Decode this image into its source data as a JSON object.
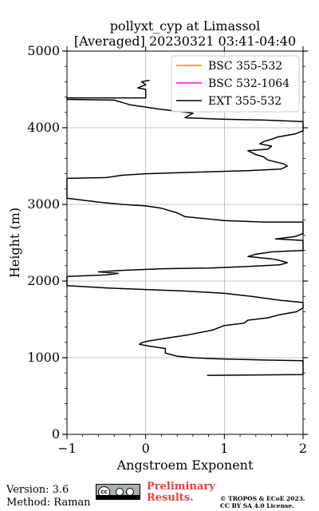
{
  "footer": {
    "version": "Version: 3.6",
    "method": "Method: Raman",
    "preliminary": [
      "Preliminary",
      "Results."
    ],
    "copyright": [
      "© TROPOS & ECoE 2023.",
      "CC BY SA 4.0 License."
    ]
  },
  "chart_data": {
    "type": "line",
    "title": [
      "pollyxt_cyp at Limassol",
      "[Averaged] 20230321 03:41-04:40"
    ],
    "xlabel": "Angstroem Exponent",
    "ylabel": "Height (m)",
    "xlim": [
      -1,
      2
    ],
    "ylim": [
      0,
      5000
    ],
    "x_ticks": [
      -1,
      0,
      1,
      2
    ],
    "y_ticks": [
      0,
      1000,
      2000,
      3000,
      4000,
      5000
    ],
    "x_tick_labels": [
      "−1",
      "0",
      "1",
      "2"
    ],
    "y_tick_labels": [
      "0",
      "1000",
      "2000",
      "3000",
      "4000",
      "5000"
    ],
    "grid": true,
    "legend_position": "top-right",
    "series": [
      {
        "name": "BSC 355-532",
        "color": "#ff7f0e",
        "points": []
      },
      {
        "name": "BSC 532-1064",
        "color": "#ff00ff",
        "points": []
      },
      {
        "name": "EXT 355-532",
        "color": "#000000",
        "points": [
          [
            0.78,
            770
          ],
          [
            2.0,
            780
          ],
          [
            2.0,
            960
          ],
          [
            1.5,
            970
          ],
          [
            0.9,
            985
          ],
          [
            0.6,
            1000
          ],
          [
            0.4,
            1020
          ],
          [
            0.25,
            1060
          ],
          [
            0.25,
            1120
          ],
          [
            0.05,
            1150
          ],
          [
            -0.08,
            1175
          ],
          [
            -0.04,
            1200
          ],
          [
            0.05,
            1220
          ],
          [
            0.3,
            1260
          ],
          [
            0.55,
            1300
          ],
          [
            0.85,
            1360
          ],
          [
            1.0,
            1420
          ],
          [
            1.25,
            1450
          ],
          [
            1.3,
            1490
          ],
          [
            1.55,
            1520
          ],
          [
            1.7,
            1560
          ],
          [
            1.92,
            1600
          ],
          [
            2.0,
            1650
          ],
          [
            2.0,
            1720
          ],
          [
            1.7,
            1750
          ],
          [
            1.35,
            1800
          ],
          [
            1.0,
            1840
          ],
          [
            0.5,
            1870
          ],
          [
            0.0,
            1890
          ],
          [
            -0.5,
            1910
          ],
          [
            -1.0,
            1940
          ],
          [
            -1.0,
            2060
          ],
          [
            -0.5,
            2080
          ],
          [
            -0.35,
            2100
          ],
          [
            -0.6,
            2120
          ],
          [
            -0.3,
            2140
          ],
          [
            0.2,
            2160
          ],
          [
            0.8,
            2170
          ],
          [
            1.3,
            2190
          ],
          [
            1.7,
            2210
          ],
          [
            1.8,
            2240
          ],
          [
            1.7,
            2270
          ],
          [
            1.6,
            2290
          ],
          [
            1.3,
            2320
          ],
          [
            1.4,
            2350
          ],
          [
            1.6,
            2380
          ],
          [
            2.0,
            2400
          ],
          [
            2.0,
            2530
          ],
          [
            1.65,
            2550
          ],
          [
            1.9,
            2580
          ],
          [
            2.0,
            2620
          ],
          [
            2.0,
            2770
          ],
          [
            1.5,
            2770
          ],
          [
            1.0,
            2790
          ],
          [
            0.5,
            2840
          ],
          [
            0.4,
            2890
          ],
          [
            0.2,
            2950
          ],
          [
            0.0,
            2980
          ],
          [
            -0.3,
            3000
          ],
          [
            -0.6,
            3030
          ],
          [
            -1.0,
            3080
          ],
          [
            -1.0,
            3340
          ],
          [
            -0.5,
            3350
          ],
          [
            -0.3,
            3380
          ],
          [
            0.0,
            3400
          ],
          [
            0.6,
            3420
          ],
          [
            1.3,
            3440
          ],
          [
            1.72,
            3460
          ],
          [
            1.8,
            3500
          ],
          [
            1.75,
            3530
          ],
          [
            1.55,
            3580
          ],
          [
            1.5,
            3620
          ],
          [
            1.4,
            3650
          ],
          [
            1.3,
            3700
          ],
          [
            1.55,
            3720
          ],
          [
            1.6,
            3760
          ],
          [
            1.45,
            3790
          ],
          [
            1.5,
            3820
          ],
          [
            1.6,
            3850
          ],
          [
            1.68,
            3880
          ],
          [
            1.9,
            3920
          ],
          [
            2.0,
            3960
          ],
          [
            2.0,
            4080
          ],
          [
            1.5,
            4100
          ],
          [
            1.0,
            4110
          ],
          [
            0.5,
            4130
          ],
          [
            0.55,
            4160
          ],
          [
            0.6,
            4190
          ],
          [
            0.2,
            4240
          ],
          [
            -0.2,
            4300
          ],
          [
            -0.3,
            4330
          ],
          [
            -0.4,
            4360
          ],
          [
            -1.0,
            4370
          ],
          [
            -1.0,
            4390
          ],
          [
            0.0,
            4390
          ],
          [
            0.0,
            4500
          ],
          [
            -0.1,
            4520
          ],
          [
            0.0,
            4560
          ],
          [
            -0.05,
            4600
          ],
          [
            0.05,
            4620
          ]
        ]
      }
    ]
  }
}
